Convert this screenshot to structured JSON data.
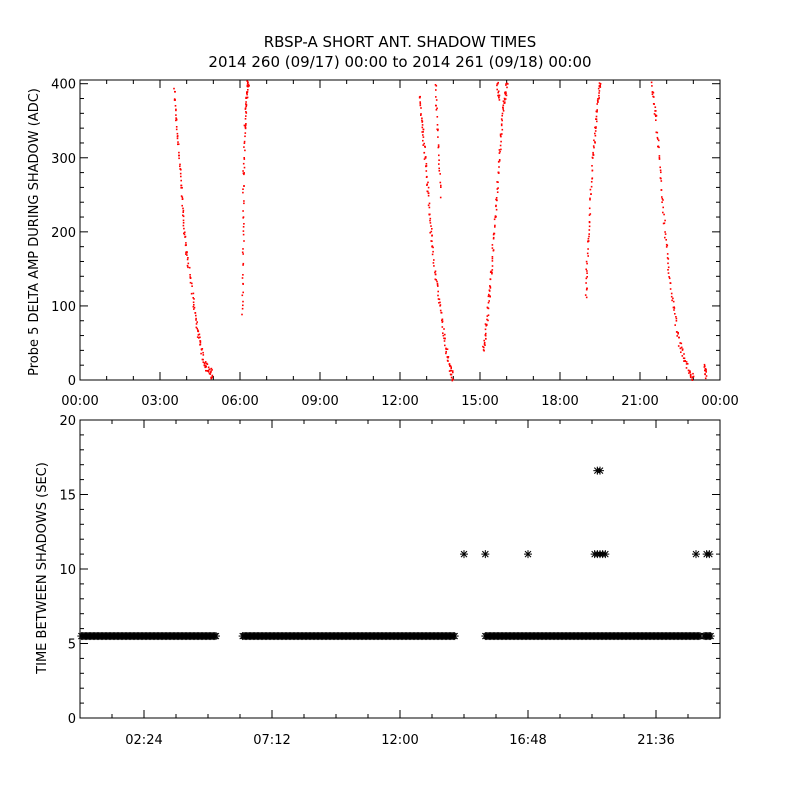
{
  "colors": {
    "shadow_points": "#ff0000",
    "interval_points": "#000000",
    "axes": "#000000",
    "background": "#ffffff"
  },
  "chart_data": [
    {
      "type": "scatter",
      "title": "RBSP-A SHORT ANT. SHADOW TIMES",
      "subtitle": "2014 260 (09/17) 00:00 to 2014 261 (09/18) 00:00",
      "xlabel": "",
      "ylabel": "Probe 5 DELTA AMP DURING SHADOW (ADC)",
      "x_unit": "hours after 2014-09-17 00:00",
      "xlim": [
        0,
        24
      ],
      "ylim": [
        0,
        405
      ],
      "x_ticks": [
        0,
        3,
        6,
        9,
        12,
        15,
        18,
        21,
        24
      ],
      "x_tick_labels": [
        "00:00",
        "03:00",
        "06:00",
        "09:00",
        "12:00",
        "15:00",
        "18:00",
        "21:00",
        "00:00"
      ],
      "y_ticks": [
        0,
        100,
        200,
        300,
        400
      ],
      "y_tick_labels": [
        "0",
        "100",
        "200",
        "300",
        "400"
      ],
      "grid": false,
      "marker": "dot",
      "color": "#ff0000",
      "segments": [
        {
          "x": [
            3.5,
            3.6,
            3.7,
            3.8,
            3.9,
            4.0,
            4.2,
            4.35,
            4.5,
            4.65,
            4.8,
            4.95
          ],
          "y": [
            395,
            345,
            300,
            245,
            195,
            165,
            115,
            75,
            45,
            25,
            12,
            8
          ]
        },
        {
          "x": [
            6.05,
            6.1,
            6.1,
            6.15,
            6.2,
            6.25,
            6.3
          ],
          "y": [
            85,
            180,
            265,
            330,
            370,
            395,
            405
          ]
        },
        {
          "x": [
            12.7,
            12.8,
            12.9,
            13.0,
            13.1,
            13.2,
            13.4,
            13.55,
            13.7,
            13.85,
            13.95
          ],
          "y": [
            390,
            350,
            310,
            265,
            220,
            170,
            120,
            80,
            45,
            15,
            5
          ]
        },
        {
          "x": [
            13.3,
            13.4,
            13.5
          ],
          "y": [
            405,
            330,
            250
          ]
        },
        {
          "x": [
            15.1,
            15.2,
            15.3,
            15.4,
            15.5,
            15.6,
            15.7,
            15.8,
            15.9,
            16.0
          ],
          "y": [
            40,
            70,
            105,
            150,
            200,
            250,
            300,
            350,
            385,
            400
          ]
        },
        {
          "x": [
            15.6,
            15.7
          ],
          "y": [
            405,
            380
          ]
        },
        {
          "x": [
            18.95,
            19.0,
            19.1,
            19.2,
            19.3,
            19.4,
            19.5
          ],
          "y": [
            110,
            170,
            230,
            300,
            340,
            380,
            405
          ]
        },
        {
          "x": [
            21.4,
            21.55,
            21.7,
            21.85,
            22.0,
            22.2,
            22.4,
            22.6,
            22.85,
            23.0
          ],
          "y": [
            405,
            360,
            300,
            230,
            165,
            105,
            60,
            30,
            10,
            3
          ]
        },
        {
          "x": [
            23.4,
            23.45
          ],
          "y": [
            18,
            5
          ]
        }
      ]
    },
    {
      "type": "scatter",
      "title": "",
      "xlabel": "",
      "ylabel": "TIME BETWEEN SHADOWS (SEC)",
      "x_unit": "hours after 2014-09-17 00:00",
      "xlim": [
        0,
        24
      ],
      "ylim": [
        0,
        20
      ],
      "x_ticks": [
        2.4,
        7.2,
        12.0,
        16.8,
        21.6
      ],
      "x_tick_labels": [
        "02:24",
        "07:12",
        "12:00",
        "16:48",
        "21:36"
      ],
      "y_ticks": [
        0,
        5,
        10,
        15,
        20
      ],
      "y_tick_labels": [
        "0",
        "5",
        "10",
        "15",
        "20"
      ],
      "grid": false,
      "marker": "asterisk",
      "color": "#000000",
      "baseline_value": 5.5,
      "baseline_ranges": [
        [
          0.05,
          5.1
        ],
        [
          6.1,
          14.1
        ],
        [
          15.2,
          23.3
        ],
        [
          23.4,
          23.7
        ]
      ],
      "points": [
        {
          "x": 14.4,
          "y": 11
        },
        {
          "x": 15.2,
          "y": 11
        },
        {
          "x": 16.8,
          "y": 11
        },
        {
          "x": 19.3,
          "y": 11
        },
        {
          "x": 19.4,
          "y": 11
        },
        {
          "x": 19.5,
          "y": 11
        },
        {
          "x": 19.6,
          "y": 11
        },
        {
          "x": 19.7,
          "y": 11
        },
        {
          "x": 19.4,
          "y": 16.6
        },
        {
          "x": 19.5,
          "y": 16.6
        },
        {
          "x": 23.1,
          "y": 11
        },
        {
          "x": 23.5,
          "y": 11
        },
        {
          "x": 23.6,
          "y": 11
        }
      ]
    }
  ]
}
